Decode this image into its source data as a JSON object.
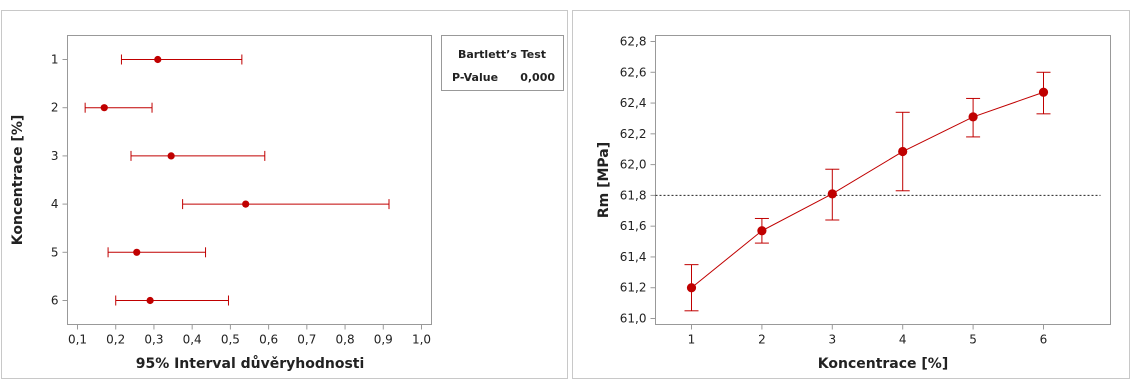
{
  "colors": {
    "series": "#c00000",
    "frame": "#999999",
    "panel_border": "#c8c8c8",
    "reference": "#222222"
  },
  "legend": {
    "title": "Bartlett’s Test",
    "pvalue_label": "P-Value",
    "pvalue": "0,000"
  },
  "chart_data": [
    {
      "type": "interval",
      "orientation": "horizontal",
      "title": "",
      "xlabel": "95% Interval důvěryhodnosti",
      "ylabel": "Koncentrace [%]",
      "xlim": [
        0.1,
        1.0
      ],
      "xticks": [
        0.1,
        0.2,
        0.3,
        0.4,
        0.5,
        0.6,
        0.7,
        0.8,
        0.9,
        1.0
      ],
      "xtick_labels": [
        "0,1",
        "0,2",
        "0,3",
        "0,4",
        "0,5",
        "0,6",
        "0,7",
        "0,8",
        "0,9",
        "1,0"
      ],
      "categories": [
        "1",
        "2",
        "3",
        "4",
        "5",
        "6"
      ],
      "center": [
        0.31,
        0.17,
        0.345,
        0.54,
        0.255,
        0.29
      ],
      "lower": [
        0.215,
        0.12,
        0.24,
        0.375,
        0.18,
        0.2
      ],
      "upper": [
        0.53,
        0.295,
        0.59,
        0.915,
        0.435,
        0.495
      ],
      "grid": false
    },
    {
      "type": "line",
      "title": "",
      "xlabel": "Koncentrace [%]",
      "ylabel": "Rm [MPa]",
      "x": [
        1,
        2,
        3,
        4,
        5,
        6
      ],
      "xtick_labels": [
        "1",
        "2",
        "3",
        "4",
        "5",
        "6"
      ],
      "values": [
        61.2,
        61.57,
        61.81,
        62.085,
        62.31,
        62.47
      ],
      "lower": [
        61.05,
        61.49,
        61.64,
        61.83,
        62.18,
        62.33
      ],
      "upper": [
        61.35,
        61.65,
        61.97,
        62.34,
        62.43,
        62.6
      ],
      "ylim": [
        61.0,
        62.8
      ],
      "yticks": [
        61.0,
        61.2,
        61.4,
        61.6,
        61.8,
        62.0,
        62.2,
        62.4,
        62.6,
        62.8
      ],
      "ytick_labels": [
        "61,0",
        "61,2",
        "61,4",
        "61,6",
        "61,8",
        "62,0",
        "62,2",
        "62,4",
        "62,6",
        "62,8"
      ],
      "reference_line": 61.8,
      "grid": false
    }
  ]
}
